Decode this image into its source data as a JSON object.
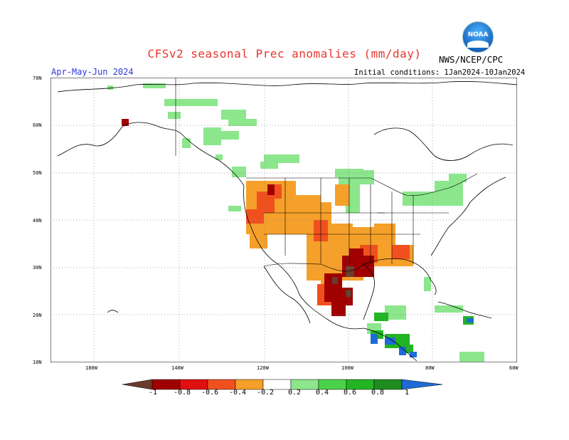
{
  "header": {
    "title": "CFSv2 seasonal Prec anomalies (mm/day)",
    "season": "Apr-May-Jun 2024",
    "initial_conditions": "Initial conditions: 1Jan2024-10Jan2024",
    "agency": "NWS/NCEP/CPC",
    "logo_text": "NOAA"
  },
  "axes": {
    "lat_labels": [
      "70N",
      "60N",
      "50N",
      "40N",
      "30N",
      "20N",
      "10N"
    ],
    "lon_labels": [
      "180W",
      "140W",
      "120W",
      "100W",
      "80W",
      "60W"
    ]
  },
  "legend": {
    "labels": [
      "-1",
      "-0.8",
      "-0.6",
      "-0.4",
      "-0.2",
      "0.2",
      "0.4",
      "0.6",
      "0.8",
      "1"
    ],
    "colors": [
      "#6b3b2b",
      "#a00000",
      "#e01010",
      "#f0501e",
      "#f5a02a",
      "#ffffff",
      "#8ce68c",
      "#4bd24b",
      "#23b423",
      "#1e8c1e",
      "#1f6bd6"
    ]
  },
  "colors": {
    "border": "#000000",
    "coast": "#000000",
    "grid": "#888888"
  }
}
